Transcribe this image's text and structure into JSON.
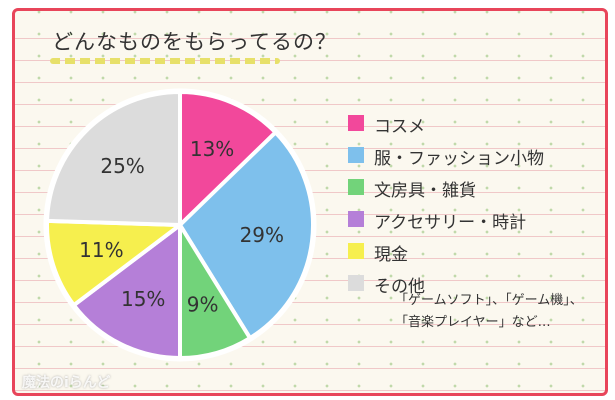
{
  "title": "どんなものをもらってるの？",
  "chart_data": {
    "type": "pie",
    "title": "どんなものをもらってるの？",
    "slices": [
      {
        "name": "コスメ",
        "value": 13,
        "label": "13%",
        "color": "#f2489b"
      },
      {
        "name": "服・ファッション小物",
        "value": 29,
        "label": "29%",
        "color": "#7ec0ec"
      },
      {
        "name": "文房具・雑貨",
        "value": 9,
        "label": "9%",
        "color": "#72d37a"
      },
      {
        "name": "アクセサリー・時計",
        "value": 15,
        "label": "15%",
        "color": "#b57fd8"
      },
      {
        "name": "現金",
        "value": 11,
        "label": "11%",
        "color": "#f6ef4e"
      },
      {
        "name": "その他",
        "value": 25,
        "label": "25%",
        "color": "#dcdcdc"
      }
    ],
    "legend_position": "right",
    "start_angle_deg": 0,
    "direction": "clockwise"
  },
  "note": {
    "line1": "「ゲームソフト」、「ゲーム機」、",
    "line2": "「音楽プレイヤー」など…"
  },
  "watermark": "魔法のiらんど",
  "colors": {
    "border": "#e8455a",
    "stroke": "#333333"
  }
}
